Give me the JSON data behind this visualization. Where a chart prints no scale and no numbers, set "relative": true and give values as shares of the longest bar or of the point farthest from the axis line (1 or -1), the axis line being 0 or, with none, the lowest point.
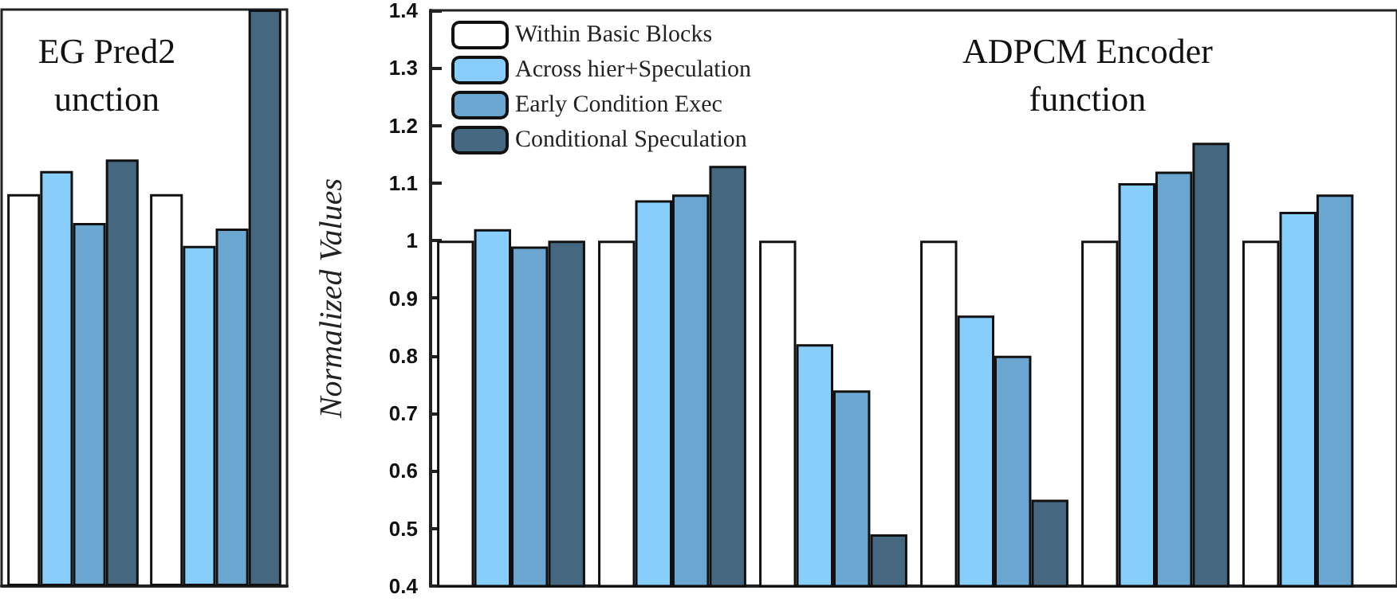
{
  "chart_data": [
    {
      "type": "bar",
      "title": "EG Pred2\nunction",
      "relative": true,
      "legend": false,
      "categories": [
        null,
        null
      ],
      "series": [
        {
          "color": "#ffffff",
          "values": [
            0.68,
            0.68
          ]
        },
        {
          "color": "#87cefa",
          "values": [
            0.72,
            0.59
          ]
        },
        {
          "color": "#6aa6d0",
          "values": [
            0.63,
            0.62
          ]
        },
        {
          "color": "#456880",
          "values": [
            0.74,
            1.0
          ]
        }
      ]
    },
    {
      "type": "bar",
      "title": "ADPCM Encoder\nfunction",
      "ylabel": "Normalized Values",
      "legend": "top left",
      "categories": [
        null,
        null,
        null,
        null,
        null,
        null
      ],
      "ylim": [
        0.4,
        1.4
      ],
      "yticks": [
        0.4,
        0.5,
        0.6,
        0.7,
        0.8,
        0.9,
        1,
        1.1,
        1.2,
        1.3,
        1.4
      ],
      "series": [
        {
          "name": "Within Basic Blocks",
          "color": "#ffffff",
          "values": [
            1.0,
            1.0,
            1.0,
            1.0,
            1.0,
            1.0
          ]
        },
        {
          "name": "Across hier+Speculation",
          "color": "#87cefa",
          "values": [
            1.02,
            1.07,
            0.82,
            0.87,
            1.1,
            1.05
          ]
        },
        {
          "name": "Early Condition Exec",
          "color": "#6aa6d0",
          "values": [
            0.99,
            1.08,
            0.74,
            0.8,
            1.12,
            1.08
          ]
        },
        {
          "name": "Conditional Speculation",
          "color": "#456880",
          "values": [
            1.0,
            1.13,
            0.49,
            0.55,
            1.17,
            null
          ]
        }
      ]
    }
  ]
}
